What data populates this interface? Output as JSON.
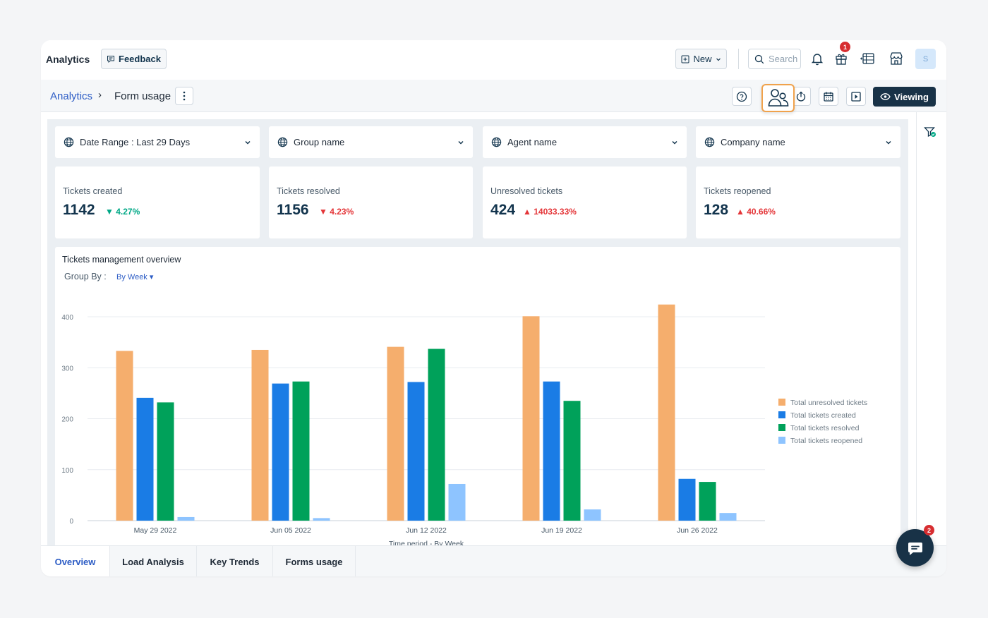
{
  "header": {
    "title": "Analytics",
    "feedback_label": "Feedback",
    "new_label": "New",
    "search_placeholder": "Search",
    "gift_badge": "1",
    "avatar_initial": "S"
  },
  "breadcrumb": {
    "parent": "Analytics",
    "separator": "›",
    "current": "Form usage"
  },
  "toolbar": {
    "viewing_label": "Viewing"
  },
  "filters": [
    {
      "label": "Date Range :  Last 29 Days"
    },
    {
      "label": "Group name"
    },
    {
      "label": "Agent name"
    },
    {
      "label": "Company name"
    }
  ],
  "metrics": [
    {
      "title": "Tickets created",
      "value": "1142",
      "delta": "4.27%",
      "direction": "down"
    },
    {
      "title": "Tickets resolved",
      "value": "1156",
      "delta": "4.23%",
      "direction": "down"
    },
    {
      "title": "Unresolved tickets",
      "value": "424",
      "delta": "14033.33%",
      "direction": "up"
    },
    {
      "title": "Tickets reopened",
      "value": "128",
      "delta": "40.66%",
      "direction": "up"
    }
  ],
  "overview": {
    "title": "Tickets management overview",
    "group_by_label": "Group By :",
    "group_by_value": "By Week"
  },
  "chart_data": {
    "type": "bar",
    "categories": [
      "May 29 2022",
      "Jun 05 2022",
      "Jun 12 2022",
      "Jun 19 2022",
      "Jun 26 2022"
    ],
    "series": [
      {
        "name": "Total unresolved tickets",
        "color": "#f5ae6d",
        "values": [
          333,
          335,
          341,
          401,
          424
        ]
      },
      {
        "name": "Total tickets created",
        "color": "#1a7ce5",
        "values": [
          241,
          269,
          272,
          273,
          82
        ]
      },
      {
        "name": "Total tickets resolved",
        "color": "#00a15a",
        "values": [
          232,
          273,
          337,
          235,
          76
        ]
      },
      {
        "name": "Total tickets reopened",
        "color": "#8ec4ff",
        "values": [
          7,
          5,
          72,
          22,
          15
        ]
      }
    ],
    "yticks": [
      0,
      100,
      200,
      300,
      400
    ],
    "ylim": [
      0,
      400
    ],
    "xlabel": "Time period - By Week",
    "legend": "right"
  },
  "tabs": [
    {
      "label": "Overview",
      "active": true
    },
    {
      "label": "Load Analysis",
      "active": false
    },
    {
      "label": "Key Trends",
      "active": false
    },
    {
      "label": "Forms usage",
      "active": false
    }
  ],
  "chat": {
    "badge": "2"
  }
}
